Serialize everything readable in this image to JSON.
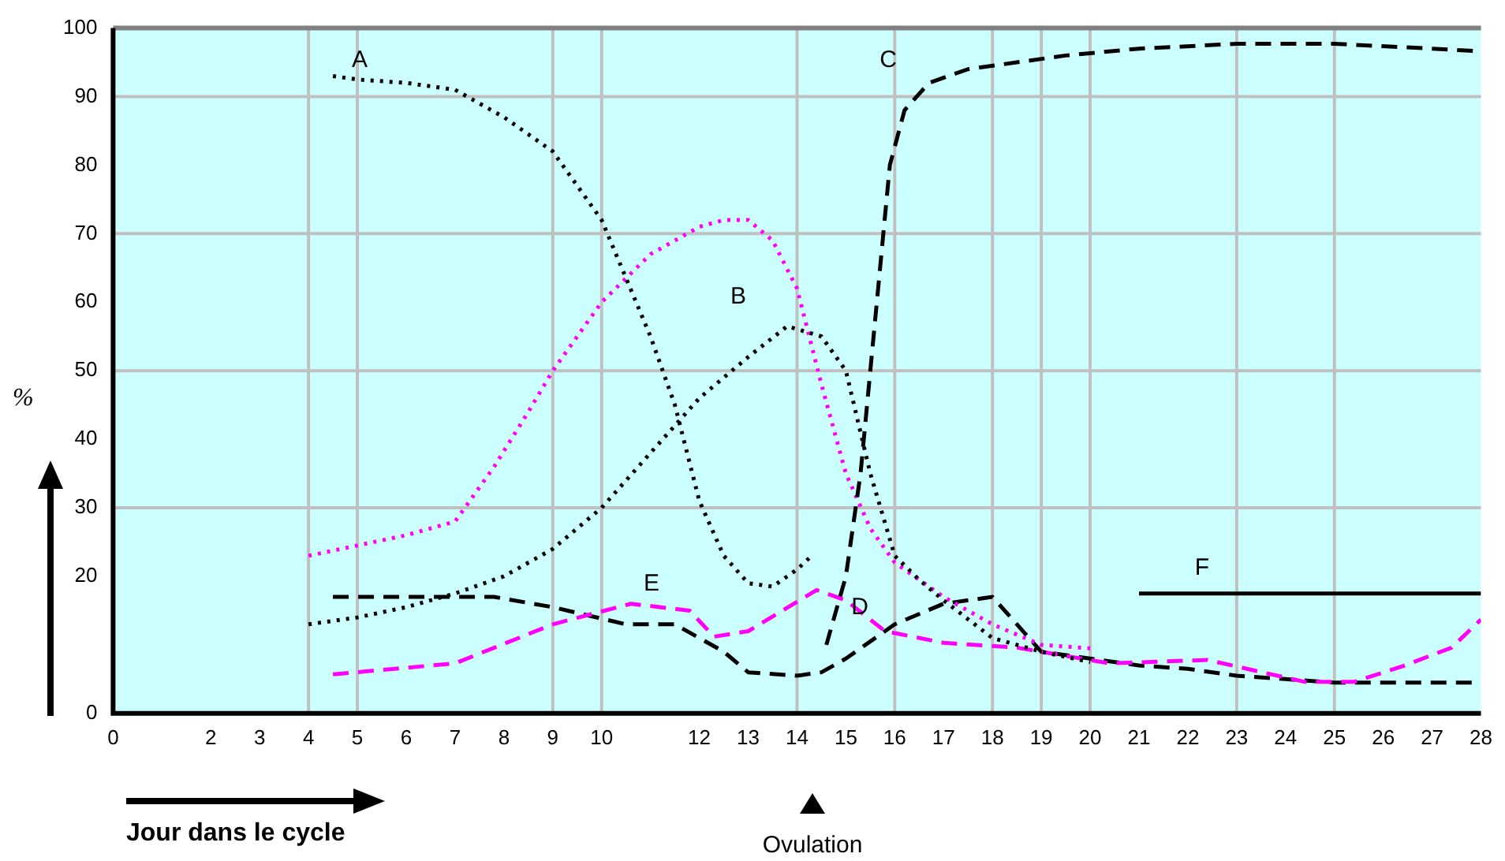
{
  "chart_data": {
    "type": "line",
    "xlabel": "Jour dans le cycle",
    "ylabel": "%",
    "xlim": [
      0,
      28
    ],
    "xticks": [
      0,
      2,
      3,
      4,
      5,
      6,
      7,
      8,
      9,
      10,
      12,
      13,
      14,
      15,
      16,
      17,
      18,
      19,
      20,
      21,
      22,
      23,
      24,
      25,
      26,
      27,
      28
    ],
    "ylim": [
      0,
      100
    ],
    "yticks": [
      0,
      20,
      30,
      40,
      50,
      60,
      70,
      80,
      90,
      100
    ],
    "grid": false,
    "legend": false,
    "marker": "none",
    "series": [
      {
        "color": "#000000",
        "line_style": "dotted",
        "x": [
          4.5,
          5,
          6,
          7,
          8,
          9,
          10,
          11,
          11.5,
          12,
          12.5,
          13,
          13.5,
          14,
          14.3
        ],
        "values": [
          93,
          92.5,
          92,
          91,
          87,
          82,
          72,
          55,
          45,
          31,
          23,
          19,
          18.5,
          21,
          23
        ]
      },
      {
        "color": "#000000",
        "line_style": "dotted",
        "x": [
          4,
          5,
          6,
          7,
          8,
          9,
          10,
          11,
          12,
          13,
          13.8,
          14.5,
          15,
          15.5,
          16,
          16.5,
          17,
          18,
          19,
          20
        ],
        "values": [
          13,
          14,
          15.5,
          17.5,
          20,
          24,
          30,
          38,
          46,
          52,
          56.5,
          55,
          50,
          35,
          23,
          19.5,
          16.5,
          11,
          9,
          7.5
        ]
      },
      {
        "color": "#000000",
        "line_style": "dashed",
        "x": [
          14.6,
          15,
          15.3,
          15.5,
          15.7,
          15.9,
          16.2,
          16.7,
          17.5,
          18.5,
          19.5,
          21,
          23,
          25,
          27,
          28
        ],
        "values": [
          10,
          20,
          35,
          50,
          65,
          80,
          88,
          92,
          94,
          95,
          96,
          97,
          97.7,
          97.7,
          97,
          96.6
        ]
      },
      {
        "color": "#ff00ff",
        "line_style": "dotted",
        "x": [
          4,
          5,
          6,
          7,
          7.8,
          8.5,
          9,
          10,
          11,
          12,
          12.5,
          13,
          13.5,
          14,
          14.5,
          15,
          15.5,
          16,
          17,
          18,
          19,
          20
        ],
        "values": [
          23,
          24.5,
          26,
          28,
          36,
          44,
          50,
          60,
          67,
          71,
          72,
          72,
          69,
          62,
          48,
          35,
          27,
          22,
          17,
          13,
          10,
          9.5
        ]
      },
      {
        "color": "#ff00ff",
        "line_style": "dashed",
        "x": [
          4.5,
          7,
          9,
          10.6,
          11.8,
          12.3,
          13,
          14.4,
          15,
          15.8,
          17,
          18.5,
          20.4,
          22.4,
          24.4,
          25.4,
          26.4,
          27.4,
          28
        ],
        "values": [
          5.7,
          7.3,
          13,
          16,
          15,
          11.2,
          12,
          18,
          16.5,
          12,
          10.3,
          9.6,
          7.3,
          7.8,
          4.6,
          4.6,
          6.9,
          9.6,
          13.7
        ]
      },
      {
        "color": "#000000",
        "line_style": "dashed",
        "x": [
          4.5,
          7.8,
          9,
          10.5,
          11.5,
          12.5,
          13,
          14,
          14.5,
          15,
          16,
          17,
          18,
          19,
          20,
          21,
          22,
          23,
          24,
          25,
          28
        ],
        "values": [
          17,
          17,
          15.5,
          13,
          13,
          9,
          6,
          5.5,
          6,
          8,
          13,
          16,
          17,
          9,
          8,
          7,
          6.5,
          5.5,
          5,
          4.5,
          4.5
        ]
      },
      {
        "color": "#000000",
        "line_style": "solid",
        "x": [
          21,
          28
        ],
        "values": [
          17.5,
          17.5
        ]
      }
    ],
    "ref_lines": [
      {
        "axis": "x",
        "value": 4,
        "color": "#c0c0c0"
      },
      {
        "axis": "x",
        "value": 5,
        "color": "#c0c0c0"
      },
      {
        "axis": "x",
        "value": 9,
        "color": "#c0c0c0"
      },
      {
        "axis": "x",
        "value": 10,
        "color": "#c0c0c0"
      },
      {
        "axis": "x",
        "value": 14,
        "color": "#c0c0c0"
      },
      {
        "axis": "x",
        "value": 16,
        "color": "#c0c0c0"
      },
      {
        "axis": "x",
        "value": 18,
        "color": "#c0c0c0"
      },
      {
        "axis": "x",
        "value": 19,
        "color": "#c0c0c0"
      },
      {
        "axis": "x",
        "value": 20,
        "color": "#c0c0c0"
      },
      {
        "axis": "x",
        "value": 23,
        "color": "#c0c0c0"
      },
      {
        "axis": "x",
        "value": 25,
        "color": "#c0c0c0"
      },
      {
        "axis": "y",
        "value": 30,
        "color": "#c0c0c0"
      },
      {
        "axis": "y",
        "value": 50,
        "color": "#c0c0c0"
      },
      {
        "axis": "y",
        "value": 70,
        "color": "#c0c0c0"
      },
      {
        "axis": "y",
        "value": 90,
        "color": "#c0c0c0"
      }
    ],
    "annotations": [
      "A",
      "C",
      "B",
      "E",
      "D",
      "F",
      "Ovulation"
    ]
  }
}
